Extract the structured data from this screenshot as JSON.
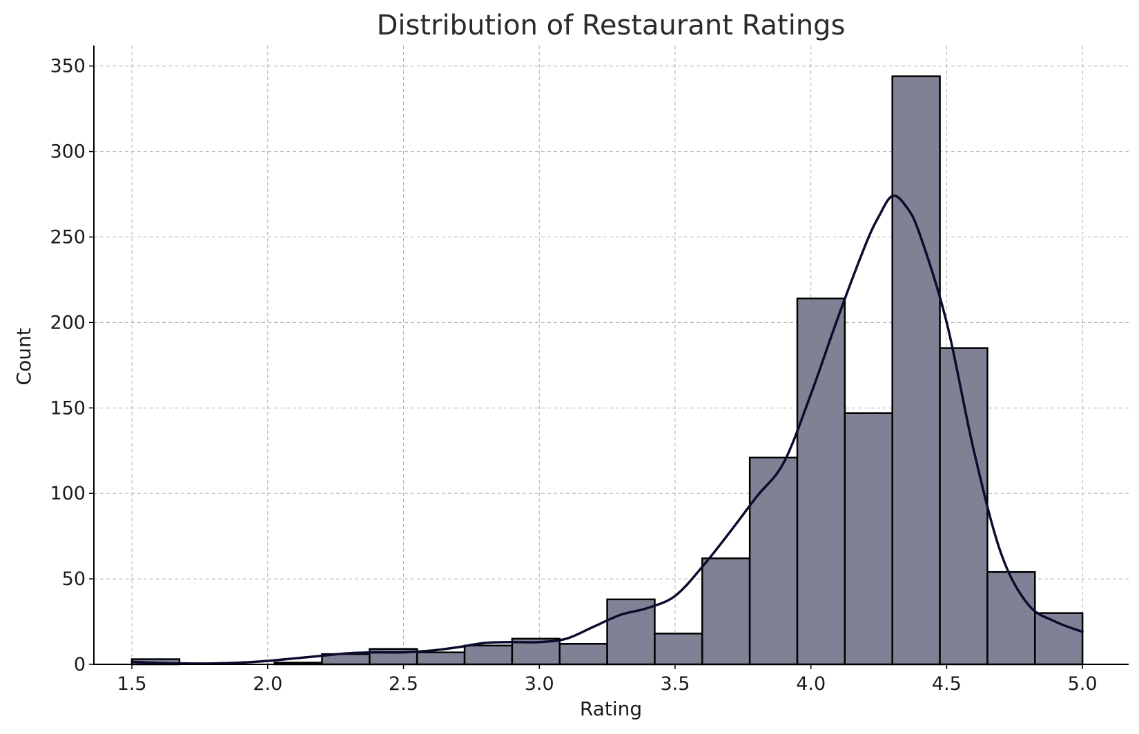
{
  "chart_data": {
    "type": "bar",
    "subtype": "histogram-with-kde",
    "title": "Distribution of Restaurant Ratings",
    "xlabel": "Rating",
    "ylabel": "Count",
    "xlim": [
      1.36,
      5.17
    ],
    "ylim": [
      0,
      362
    ],
    "x_ticks": [
      1.5,
      2.0,
      2.5,
      3.0,
      3.5,
      4.0,
      4.5,
      5.0
    ],
    "x_tick_labels": [
      "1.5",
      "2.0",
      "2.5",
      "3.0",
      "3.5",
      "4.0",
      "4.5",
      "5.0"
    ],
    "y_ticks": [
      0,
      50,
      100,
      150,
      200,
      250,
      300,
      350
    ],
    "y_tick_labels": [
      "0",
      "50",
      "100",
      "150",
      "200",
      "250",
      "300",
      "350"
    ],
    "grid": true,
    "bins": {
      "start": 1.5,
      "end": 5.0,
      "edges": [
        1.5,
        1.675,
        1.85,
        2.025,
        2.2,
        2.375,
        2.55,
        2.725,
        2.9,
        3.075,
        3.25,
        3.425,
        3.6,
        3.775,
        3.95,
        4.125,
        4.3,
        4.475,
        4.65,
        4.825,
        5.0
      ],
      "counts": [
        3,
        0,
        0,
        1,
        6,
        9,
        7,
        11,
        15,
        12,
        38,
        18,
        62,
        121,
        214,
        147,
        344,
        185,
        54,
        30
      ]
    },
    "kde": {
      "x": [
        1.5,
        1.6,
        1.7,
        1.8,
        1.9,
        2.0,
        2.1,
        2.2,
        2.3,
        2.4,
        2.5,
        2.6,
        2.7,
        2.8,
        2.9,
        3.0,
        3.1,
        3.2,
        3.3,
        3.4,
        3.5,
        3.6,
        3.7,
        3.8,
        3.9,
        4.0,
        4.1,
        4.2,
        4.25,
        4.3,
        4.35,
        4.4,
        4.5,
        4.6,
        4.7,
        4.8,
        4.9,
        5.0
      ],
      "y": [
        1.5,
        0.8,
        0.5,
        0.5,
        1,
        2,
        3.5,
        5,
        6.5,
        7,
        7,
        8,
        10,
        12.5,
        13,
        13,
        15,
        22,
        29,
        33,
        40,
        57,
        77,
        98,
        118,
        158,
        203,
        245,
        262,
        274,
        268,
        252,
        200,
        125,
        65,
        35,
        25,
        19
      ]
    },
    "colors": {
      "bar_fill": "#7f8294",
      "bar_edge": "#000000",
      "kde_line": "#0b0b2e",
      "grid": "#b0b0b0",
      "title": "#2a2a2a",
      "text": "#1a1a1a"
    }
  }
}
